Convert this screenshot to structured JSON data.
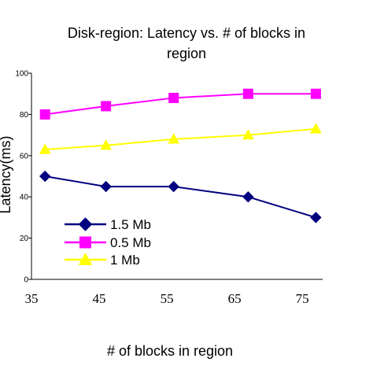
{
  "chart_data": {
    "type": "line",
    "title_lines": [
      "Disk-region: Latency vs. # of blocks in",
      "region"
    ],
    "xlabel": "# of blocks in region",
    "ylabel": "Latency(ms)",
    "x_ticks": [
      "35",
      "45",
      "55",
      "65",
      "75"
    ],
    "xlim": [
      35,
      78
    ],
    "y_ticks": [
      "0",
      "20",
      "40",
      "60",
      "80",
      "100"
    ],
    "ylim": [
      0,
      100
    ],
    "x": [
      37,
      46,
      56,
      67,
      77
    ],
    "series": [
      {
        "name": "1.5 Mb",
        "values": [
          50,
          45,
          45,
          40,
          30
        ],
        "color": "#000080",
        "marker": "diamond"
      },
      {
        "name": "0.5 Mb",
        "values": [
          80,
          84,
          88,
          90,
          90
        ],
        "color": "#ff00ff",
        "marker": "square"
      },
      {
        "name": "1 Mb",
        "values": [
          63,
          65,
          68,
          70,
          73
        ],
        "color": "#ffff00",
        "marker": "triangle"
      }
    ],
    "legend_position": "bottom-left",
    "grid": false
  }
}
